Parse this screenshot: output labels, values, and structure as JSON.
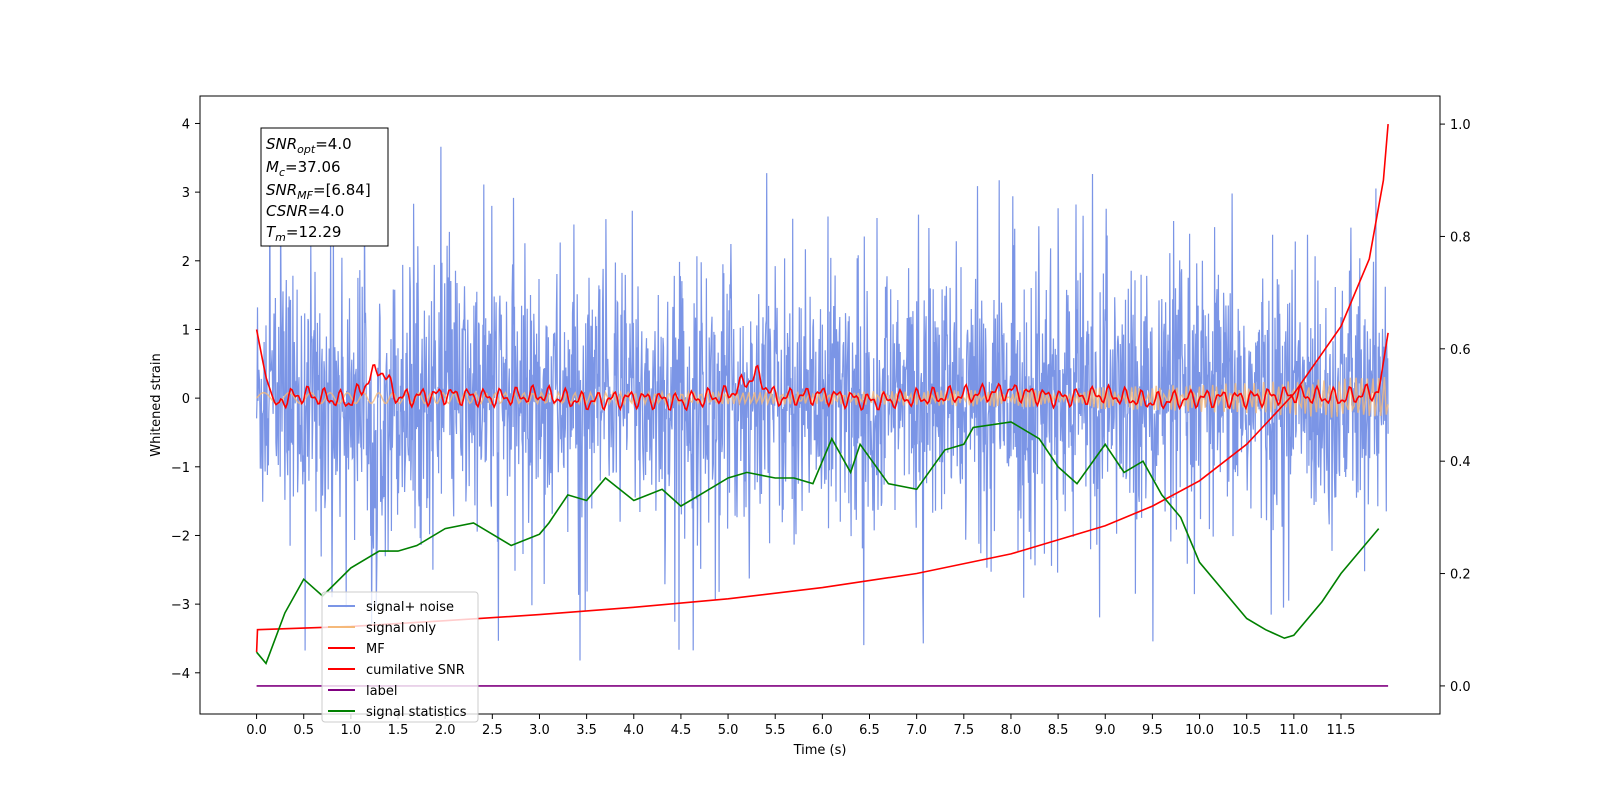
{
  "chart_data": {
    "type": "line",
    "xlabel": "Time (s)",
    "ylabel": "Whitened strain",
    "x_ticks": [
      "0.0",
      "0.5",
      "1.0",
      "1.5",
      "2.0",
      "2.5",
      "3.0",
      "3.5",
      "4.0",
      "4.5",
      "5.0",
      "5.5",
      "6.0",
      "6.5",
      "7.0",
      "7.5",
      "8.0",
      "8.5",
      "9.0",
      "9.5",
      "10.0",
      "10.5",
      "11.0",
      "11.5"
    ],
    "y_ticks_left": [
      "4",
      "3",
      "2",
      "1",
      "0",
      "−1",
      "−2",
      "−3",
      "−4"
    ],
    "y_ticks_right": [
      "1.0",
      "0.8",
      "0.6",
      "0.4",
      "0.2",
      "0.0"
    ],
    "xlim": [
      -0.6,
      12.55
    ],
    "ylim_left": [
      -4.6,
      4.4
    ],
    "ylim_right": [
      -0.05,
      1.05
    ],
    "grid": false,
    "legend_position": "lower-left",
    "annotation": {
      "snr_opt": {
        "base": "SNR",
        "sub": "opt",
        "value": "=4.0"
      },
      "mc": {
        "base": "M",
        "sub": "c",
        "value": "=37.06"
      },
      "snr_mf": {
        "base": "SNR",
        "sub": "MF",
        "value": "=[6.84]"
      },
      "csnr": {
        "base": "CSNR",
        "sub": "",
        "value": "=4.0"
      },
      "tm": {
        "base": "T",
        "sub": "m",
        "value": "=12.29"
      }
    },
    "series": [
      {
        "name": "signal+ noise",
        "color": "#7b95e6",
        "axis": "left",
        "description_values": "noise band roughly -2.2 to 2.5 with spikes to 4.0 and -4.1",
        "amplitude_envelope": [
          -2.2,
          2.5
        ]
      },
      {
        "name": "signal only",
        "color": "#f5b97a",
        "axis": "left",
        "amplitude_envelope": [
          -0.35,
          0.35
        ]
      },
      {
        "name": "MF",
        "color": "#ff0000",
        "axis": "left",
        "x": [
          0.0,
          0.1,
          0.2,
          0.3,
          0.5,
          1.0,
          1.3,
          1.5,
          2.0,
          2.5,
          3.0,
          3.5,
          4.0,
          4.5,
          5.0,
          5.3,
          5.5,
          6.0,
          6.5,
          7.0,
          7.5,
          8.0,
          8.5,
          9.0,
          9.5,
          10.0,
          10.5,
          11.0,
          11.5,
          11.9,
          12.0
        ],
        "y": [
          1.0,
          0.3,
          -0.1,
          0.0,
          0.05,
          -0.05,
          0.45,
          0.0,
          0.05,
          0.0,
          0.05,
          -0.05,
          0.0,
          -0.05,
          0.05,
          0.35,
          0.0,
          0.05,
          -0.05,
          0.0,
          0.05,
          0.1,
          0.0,
          0.05,
          -0.05,
          0.0,
          0.0,
          0.05,
          0.0,
          0.1,
          0.95
        ]
      },
      {
        "name": "cumilative SNR",
        "color": "#ff0000",
        "axis": "right",
        "x": [
          0.0,
          0.01,
          1.0,
          2.0,
          3.0,
          4.0,
          5.0,
          6.0,
          7.0,
          8.0,
          9.0,
          9.5,
          10.0,
          10.5,
          11.0,
          11.5,
          11.8,
          11.95,
          12.0
        ],
        "y": [
          0.06,
          0.1,
          0.106,
          0.116,
          0.127,
          0.14,
          0.155,
          0.175,
          0.2,
          0.235,
          0.285,
          0.32,
          0.365,
          0.43,
          0.52,
          0.64,
          0.76,
          0.9,
          1.0
        ]
      },
      {
        "name": "label",
        "color": "#800080",
        "axis": "right",
        "x": [
          0.0,
          12.0
        ],
        "y": [
          0.0,
          0.0
        ]
      },
      {
        "name": "signal statistics",
        "color": "#008000",
        "axis": "right",
        "x": [
          0.0,
          0.1,
          0.3,
          0.5,
          0.7,
          1.0,
          1.3,
          1.5,
          1.7,
          2.0,
          2.3,
          2.5,
          2.7,
          3.0,
          3.1,
          3.3,
          3.5,
          3.7,
          4.0,
          4.3,
          4.5,
          4.7,
          5.0,
          5.2,
          5.5,
          5.7,
          5.9,
          6.1,
          6.3,
          6.4,
          6.7,
          7.0,
          7.3,
          7.5,
          7.6,
          8.0,
          8.3,
          8.5,
          8.7,
          9.0,
          9.2,
          9.4,
          9.6,
          9.8,
          10.0,
          10.3,
          10.5,
          10.7,
          10.9,
          11.0,
          11.3,
          11.5,
          11.7,
          11.9
        ],
        "y": [
          0.06,
          0.04,
          0.13,
          0.19,
          0.16,
          0.21,
          0.24,
          0.24,
          0.25,
          0.28,
          0.29,
          0.27,
          0.25,
          0.27,
          0.29,
          0.34,
          0.33,
          0.37,
          0.33,
          0.35,
          0.32,
          0.34,
          0.37,
          0.38,
          0.37,
          0.37,
          0.36,
          0.44,
          0.38,
          0.43,
          0.36,
          0.35,
          0.42,
          0.43,
          0.46,
          0.47,
          0.44,
          0.39,
          0.36,
          0.43,
          0.38,
          0.4,
          0.34,
          0.3,
          0.22,
          0.16,
          0.12,
          0.1,
          0.085,
          0.09,
          0.15,
          0.2,
          0.24,
          0.28
        ]
      }
    ]
  }
}
